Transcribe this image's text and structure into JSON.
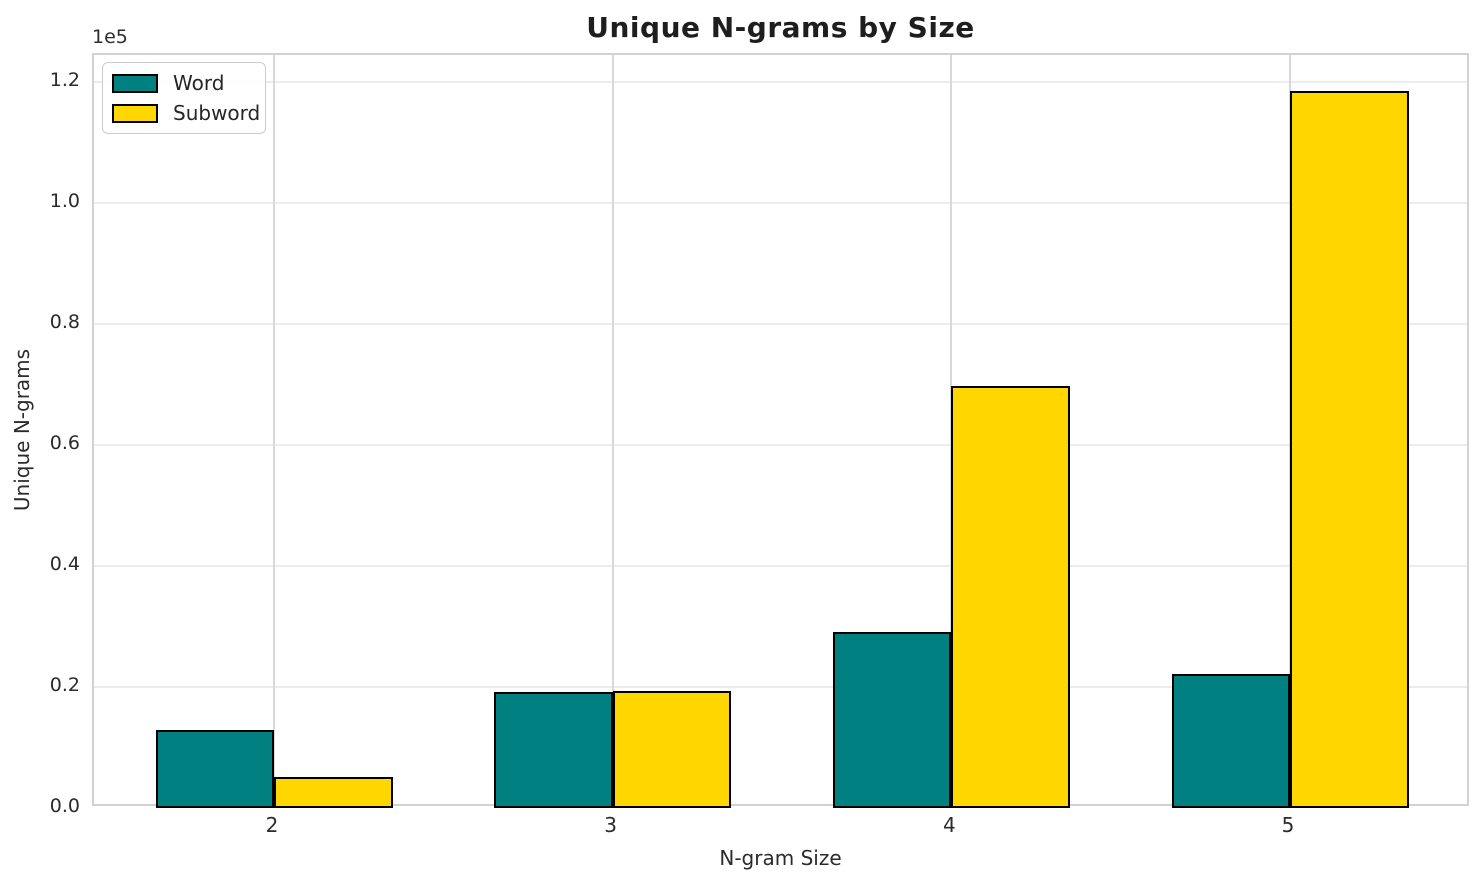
{
  "chart_data": {
    "type": "bar",
    "title": "Unique N-grams by Size",
    "xlabel": "N-gram Size",
    "ylabel": "Unique N-grams",
    "y_scale_offset_label": "1e5",
    "categories": [
      "2",
      "3",
      "4",
      "5"
    ],
    "series": [
      {
        "name": "Word",
        "color": "#008080",
        "values": [
          12900,
          19100,
          29000,
          22100
        ]
      },
      {
        "name": "Subword",
        "color": "#FFD700",
        "values": [
          5100,
          19300,
          69700,
          118500
        ]
      }
    ],
    "bar_edge_color": "#000000",
    "ylim": [
      0,
      124400
    ],
    "yticks": [
      {
        "value": 0,
        "label": "0.0"
      },
      {
        "value": 20000,
        "label": "0.2"
      },
      {
        "value": 40000,
        "label": "0.4"
      },
      {
        "value": 60000,
        "label": "0.6"
      },
      {
        "value": 80000,
        "label": "0.8"
      },
      {
        "value": 100000,
        "label": "1.0"
      },
      {
        "value": 120000,
        "label": "1.2"
      }
    ],
    "grid": true,
    "legend": {
      "position": "upper-left"
    }
  }
}
